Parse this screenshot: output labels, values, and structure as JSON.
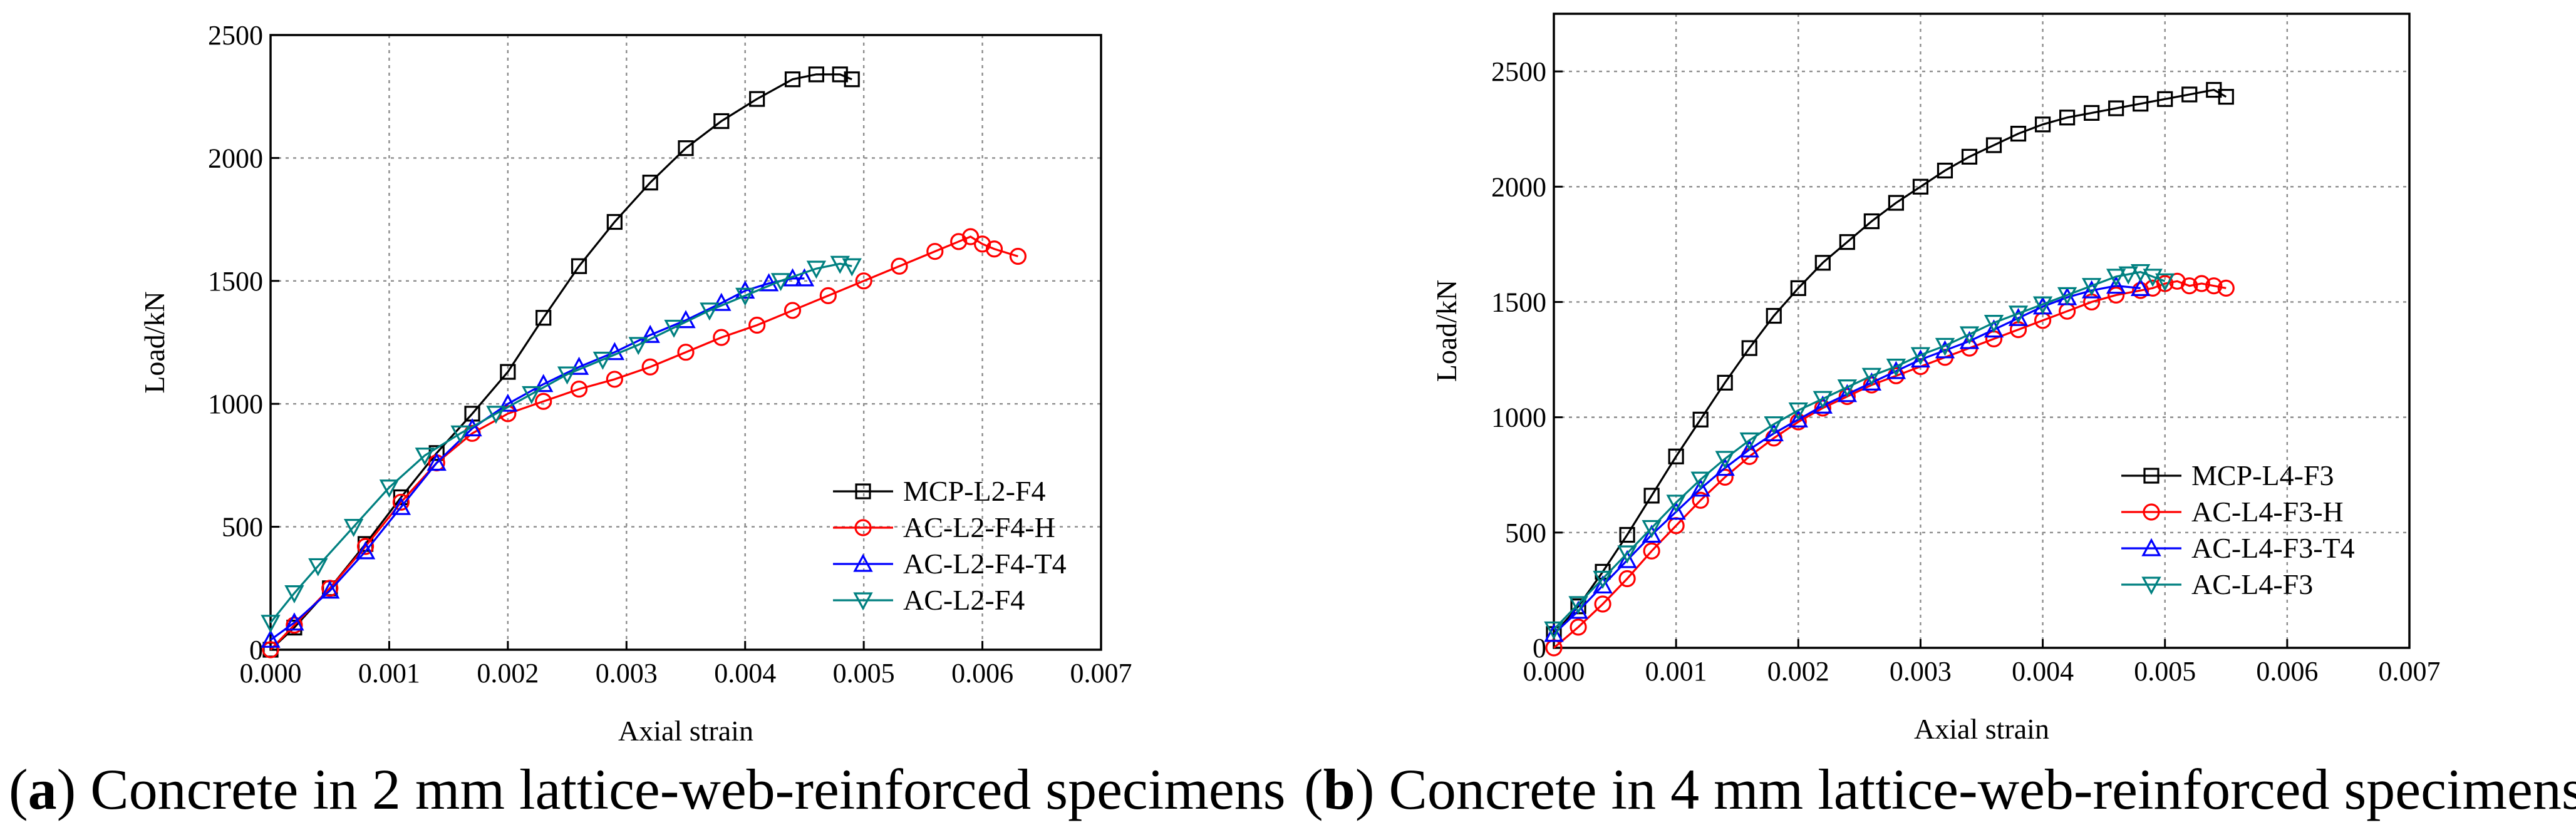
{
  "chart_data": [
    {
      "type": "line",
      "title": "",
      "xlabel": "Axial strain",
      "ylabel": "Load/kN",
      "xlim": [
        0,
        0.007
      ],
      "ylim": [
        0,
        2500
      ],
      "xticks": [
        "0.000",
        "0.001",
        "0.002",
        "0.003",
        "0.004",
        "0.005",
        "0.006",
        "0.007"
      ],
      "yticks": [
        "0",
        "500",
        "1000",
        "1500",
        "2000",
        "2500"
      ],
      "grid": true,
      "legend_position": "bottom-right",
      "caption": {
        "open": "(",
        "letter": "a",
        "rest": ") Concrete in 2 mm lattice-web-reinforced specimens"
      },
      "series": [
        {
          "name": "MCP-L2-F4",
          "color": "#000000",
          "marker": "square",
          "x": [
            0,
            0.0002,
            0.0005,
            0.0008,
            0.0011,
            0.0014,
            0.0017,
            0.002,
            0.0023,
            0.0026,
            0.0029,
            0.0032,
            0.0035,
            0.0038,
            0.0041,
            0.0044,
            0.0046,
            0.0048,
            0.0049
          ],
          "y": [
            0,
            90,
            250,
            430,
            620,
            800,
            960,
            1130,
            1350,
            1560,
            1740,
            1900,
            2040,
            2150,
            2240,
            2320,
            2340,
            2340,
            2320
          ]
        },
        {
          "name": "AC-L2-F4-H",
          "color": "#ff0000",
          "marker": "circle",
          "x": [
            0,
            0.0002,
            0.0005,
            0.0008,
            0.0011,
            0.0014,
            0.0017,
            0.002,
            0.0023,
            0.0026,
            0.0029,
            0.0032,
            0.0035,
            0.0038,
            0.0041,
            0.0044,
            0.0047,
            0.005,
            0.0053,
            0.0056,
            0.0058,
            0.0059,
            0.006,
            0.0061,
            0.0063
          ],
          "y": [
            0,
            100,
            250,
            420,
            600,
            760,
            880,
            960,
            1010,
            1060,
            1100,
            1150,
            1210,
            1270,
            1320,
            1380,
            1440,
            1500,
            1560,
            1620,
            1660,
            1680,
            1650,
            1630,
            1600
          ]
        },
        {
          "name": "AC-L2-F4-T4",
          "color": "#0000ff",
          "marker": "triangle-up",
          "x": [
            0,
            0.0002,
            0.0005,
            0.0008,
            0.0011,
            0.0014,
            0.0017,
            0.002,
            0.0023,
            0.0026,
            0.0029,
            0.0032,
            0.0035,
            0.0038,
            0.004,
            0.0042,
            0.0044,
            0.0045
          ],
          "y": [
            40,
            110,
            240,
            400,
            580,
            760,
            900,
            1000,
            1080,
            1150,
            1210,
            1280,
            1340,
            1410,
            1460,
            1490,
            1510,
            1510
          ]
        },
        {
          "name": "AC-L2-F4",
          "color": "#008080",
          "marker": "triangle-down",
          "x": [
            0,
            0.0002,
            0.0004,
            0.0007,
            0.001,
            0.0013,
            0.0016,
            0.0019,
            0.0022,
            0.0025,
            0.0028,
            0.0031,
            0.0034,
            0.0037,
            0.004,
            0.0043,
            0.0046,
            0.0048,
            0.0049
          ],
          "y": [
            110,
            230,
            340,
            500,
            660,
            790,
            880,
            960,
            1040,
            1120,
            1180,
            1240,
            1310,
            1380,
            1440,
            1500,
            1550,
            1570,
            1560
          ]
        }
      ]
    },
    {
      "type": "line",
      "title": "",
      "xlabel": "Axial strain",
      "ylabel": "Load/kN",
      "xlim": [
        0,
        0.007
      ],
      "ylim": [
        0,
        2750
      ],
      "xticks": [
        "0.000",
        "0.001",
        "0.002",
        "0.003",
        "0.004",
        "0.005",
        "0.006",
        "0.007"
      ],
      "yticks": [
        "0",
        "500",
        "1000",
        "1500",
        "2000",
        "2500"
      ],
      "grid": true,
      "legend_position": "bottom-right",
      "caption": {
        "open": "(",
        "letter": "b",
        "rest": ") Concrete in 4 mm lattice-web-reinforced specimens"
      },
      "series": [
        {
          "name": "MCP-L4-F3",
          "color": "#000000",
          "marker": "square",
          "x": [
            0,
            0.0002,
            0.0004,
            0.0006,
            0.0008,
            0.001,
            0.0012,
            0.0014,
            0.0016,
            0.0018,
            0.002,
            0.0022,
            0.0024,
            0.0026,
            0.0028,
            0.003,
            0.0032,
            0.0034,
            0.0036,
            0.0038,
            0.004,
            0.0042,
            0.0044,
            0.0046,
            0.0048,
            0.005,
            0.0052,
            0.0054,
            0.0055
          ],
          "y": [
            60,
            180,
            330,
            490,
            660,
            830,
            990,
            1150,
            1300,
            1440,
            1560,
            1670,
            1760,
            1850,
            1930,
            2000,
            2070,
            2130,
            2180,
            2230,
            2270,
            2300,
            2320,
            2340,
            2360,
            2380,
            2400,
            2420,
            2390
          ]
        },
        {
          "name": "AC-L4-F3-H",
          "color": "#ff0000",
          "marker": "circle",
          "x": [
            0,
            0.0002,
            0.0004,
            0.0006,
            0.0008,
            0.001,
            0.0012,
            0.0014,
            0.0016,
            0.0018,
            0.002,
            0.0022,
            0.0024,
            0.0026,
            0.0028,
            0.003,
            0.0032,
            0.0034,
            0.0036,
            0.0038,
            0.004,
            0.0042,
            0.0044,
            0.0046,
            0.0048,
            0.0049,
            0.005,
            0.0051,
            0.0052,
            0.0053,
            0.0054,
            0.0055
          ],
          "y": [
            0,
            90,
            190,
            300,
            420,
            530,
            640,
            740,
            830,
            910,
            980,
            1040,
            1090,
            1140,
            1180,
            1220,
            1260,
            1300,
            1340,
            1380,
            1420,
            1460,
            1500,
            1530,
            1550,
            1560,
            1580,
            1590,
            1570,
            1580,
            1570,
            1560
          ]
        },
        {
          "name": "AC-L4-F3-T4",
          "color": "#0000ff",
          "marker": "triangle-up",
          "x": [
            0,
            0.0002,
            0.0004,
            0.0006,
            0.0008,
            0.001,
            0.0012,
            0.0014,
            0.0016,
            0.0018,
            0.002,
            0.0022,
            0.0024,
            0.0026,
            0.0028,
            0.003,
            0.0032,
            0.0034,
            0.0036,
            0.0038,
            0.004,
            0.0042,
            0.0044,
            0.0046,
            0.0048
          ],
          "y": [
            60,
            160,
            270,
            380,
            490,
            590,
            690,
            780,
            860,
            930,
            990,
            1050,
            1100,
            1150,
            1200,
            1250,
            1290,
            1330,
            1380,
            1430,
            1480,
            1520,
            1550,
            1570,
            1560
          ]
        },
        {
          "name": "AC-L4-F3",
          "color": "#008080",
          "marker": "triangle-down",
          "x": [
            0,
            0.0002,
            0.0004,
            0.0006,
            0.0008,
            0.001,
            0.0012,
            0.0014,
            0.0016,
            0.0018,
            0.002,
            0.0022,
            0.0024,
            0.0026,
            0.0028,
            0.003,
            0.0032,
            0.0034,
            0.0036,
            0.0038,
            0.004,
            0.0042,
            0.0044,
            0.0046,
            0.0047,
            0.0048,
            0.0049,
            0.005
          ],
          "y": [
            80,
            190,
            300,
            410,
            520,
            630,
            730,
            820,
            900,
            970,
            1030,
            1080,
            1130,
            1180,
            1220,
            1270,
            1310,
            1360,
            1410,
            1450,
            1490,
            1530,
            1570,
            1610,
            1620,
            1630,
            1610,
            1590
          ]
        }
      ]
    }
  ]
}
